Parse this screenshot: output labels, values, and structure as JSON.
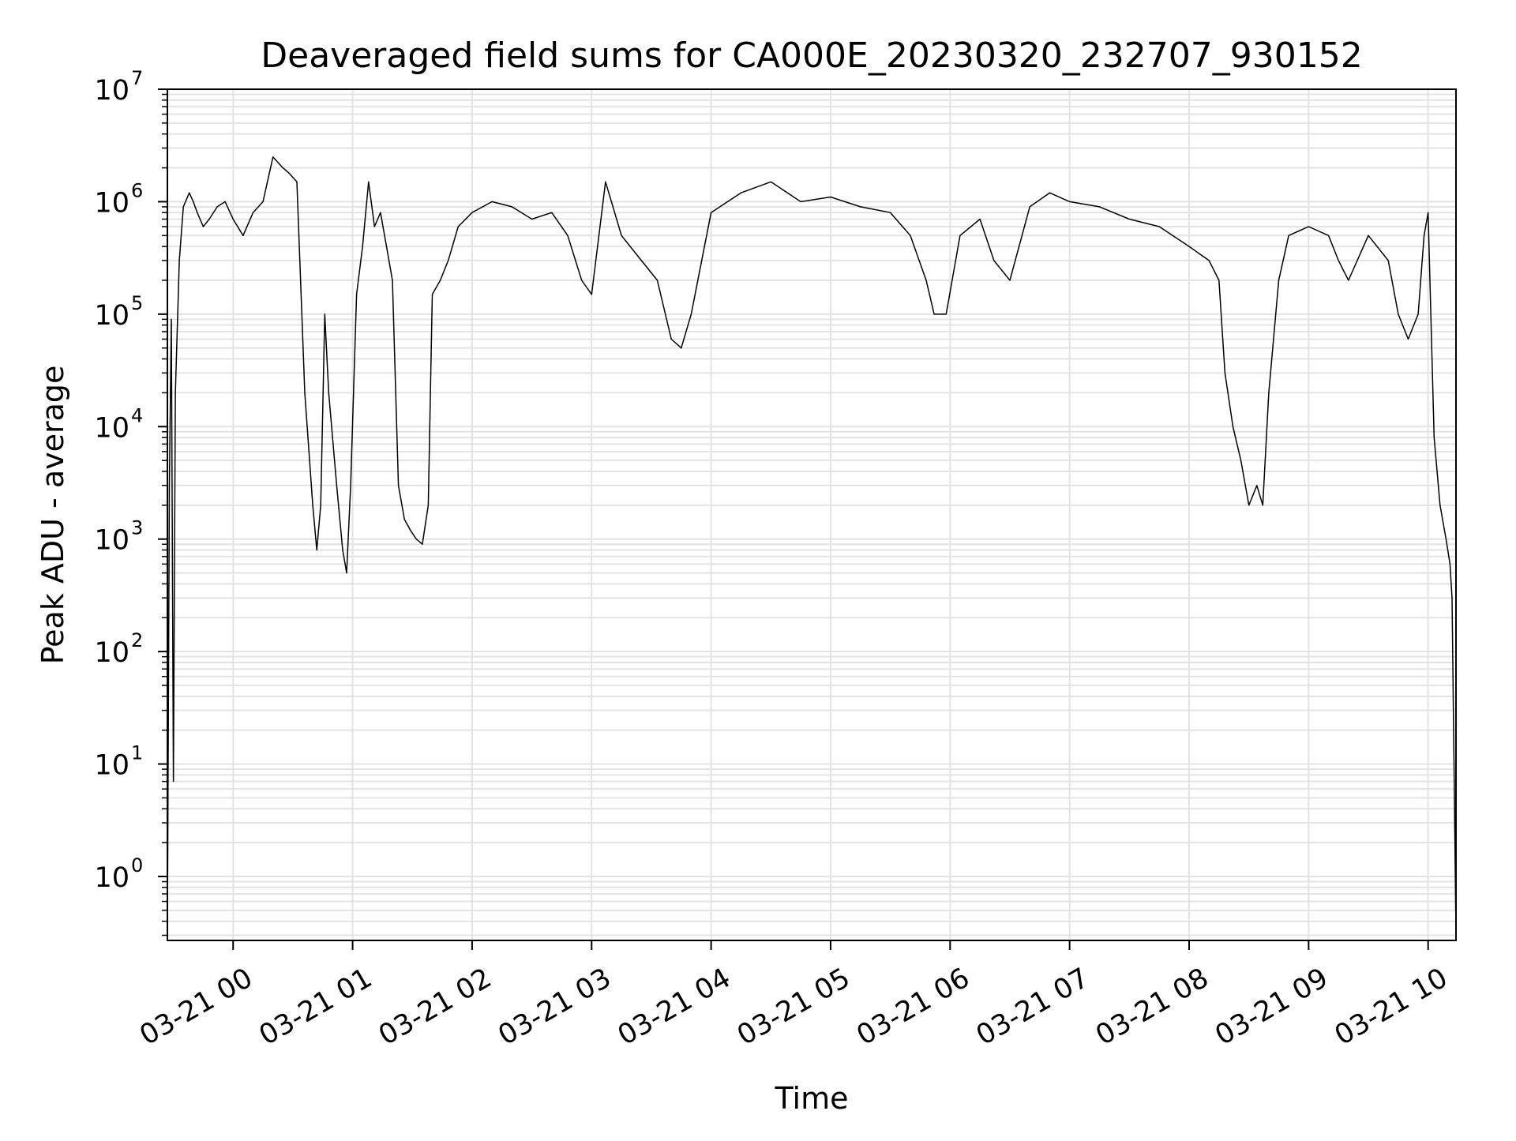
{
  "chart_data": {
    "type": "line",
    "title": "Deaveraged field sums for CA000E_20230320_232707_930152",
    "xlabel": "Time",
    "ylabel": "Peak ADU - average",
    "yscale": "log",
    "ylim": [
      0.27,
      10000000
    ],
    "xlim": [
      "2023-03-20 23:27:00",
      "2023-03-21 10:14:00"
    ],
    "grid": true,
    "line_color": "#000000",
    "grid_color": "#e3e3e3",
    "x_ticks": [
      {
        "value": "2023-03-21 00:00",
        "label": "03-21 00"
      },
      {
        "value": "2023-03-21 01:00",
        "label": "03-21 01"
      },
      {
        "value": "2023-03-21 02:00",
        "label": "03-21 02"
      },
      {
        "value": "2023-03-21 03:00",
        "label": "03-21 03"
      },
      {
        "value": "2023-03-21 04:00",
        "label": "03-21 04"
      },
      {
        "value": "2023-03-21 05:00",
        "label": "03-21 05"
      },
      {
        "value": "2023-03-21 06:00",
        "label": "03-21 06"
      },
      {
        "value": "2023-03-21 07:00",
        "label": "03-21 07"
      },
      {
        "value": "2023-03-21 08:00",
        "label": "03-21 08"
      },
      {
        "value": "2023-03-21 09:00",
        "label": "03-21 09"
      },
      {
        "value": "2023-03-21 10:00",
        "label": "03-21 10"
      }
    ],
    "y_ticks": [
      {
        "value": 1,
        "base": "10",
        "exp": "0"
      },
      {
        "value": 10,
        "base": "10",
        "exp": "1"
      },
      {
        "value": 100,
        "base": "10",
        "exp": "2"
      },
      {
        "value": 1000,
        "base": "10",
        "exp": "3"
      },
      {
        "value": 10000,
        "base": "10",
        "exp": "4"
      },
      {
        "value": 100000,
        "base": "10",
        "exp": "5"
      },
      {
        "value": 1000000,
        "base": "10",
        "exp": "6"
      },
      {
        "value": 10000000,
        "base": "10",
        "exp": "7"
      }
    ],
    "series": [
      {
        "x": [
          "2023-03-20 23:27",
          "2023-03-20 23:28",
          "2023-03-20 23:29",
          "2023-03-20 23:30",
          "2023-03-20 23:31",
          "2023-03-20 23:33",
          "2023-03-20 23:35",
          "2023-03-20 23:38",
          "2023-03-20 23:40",
          "2023-03-20 23:42",
          "2023-03-20 23:45",
          "2023-03-20 23:48",
          "2023-03-20 23:52",
          "2023-03-20 23:56",
          "2023-03-21 00:00",
          "2023-03-21 00:05",
          "2023-03-21 00:10",
          "2023-03-21 00:15",
          "2023-03-21 00:20",
          "2023-03-21 00:25",
          "2023-03-21 00:28",
          "2023-03-21 00:32",
          "2023-03-21 00:36",
          "2023-03-21 00:40",
          "2023-03-21 00:42",
          "2023-03-21 00:44",
          "2023-03-21 00:46",
          "2023-03-21 00:48",
          "2023-03-21 00:52",
          "2023-03-21 00:55",
          "2023-03-21 00:57",
          "2023-03-21 00:59",
          "2023-03-21 01:02",
          "2023-03-21 01:05",
          "2023-03-21 01:08",
          "2023-03-21 01:11",
          "2023-03-21 01:14",
          "2023-03-21 01:17",
          "2023-03-21 01:20",
          "2023-03-21 01:23",
          "2023-03-21 01:26",
          "2023-03-21 01:29",
          "2023-03-21 01:32",
          "2023-03-21 01:35",
          "2023-03-21 01:38",
          "2023-03-21 01:40",
          "2023-03-21 01:44",
          "2023-03-21 01:48",
          "2023-03-21 01:53",
          "2023-03-21 02:00",
          "2023-03-21 02:10",
          "2023-03-21 02:20",
          "2023-03-21 02:30",
          "2023-03-21 02:40",
          "2023-03-21 02:48",
          "2023-03-21 02:55",
          "2023-03-21 03:00",
          "2023-03-21 03:07",
          "2023-03-21 03:15",
          "2023-03-21 03:25",
          "2023-03-21 03:33",
          "2023-03-21 03:40",
          "2023-03-21 03:45",
          "2023-03-21 03:50",
          "2023-03-21 04:00",
          "2023-03-21 04:15",
          "2023-03-21 04:30",
          "2023-03-21 04:45",
          "2023-03-21 05:00",
          "2023-03-21 05:15",
          "2023-03-21 05:30",
          "2023-03-21 05:40",
          "2023-03-21 05:48",
          "2023-03-21 05:52",
          "2023-03-21 05:58",
          "2023-03-21 06:05",
          "2023-03-21 06:15",
          "2023-03-21 06:22",
          "2023-03-21 06:30",
          "2023-03-21 06:40",
          "2023-03-21 06:50",
          "2023-03-21 07:00",
          "2023-03-21 07:15",
          "2023-03-21 07:30",
          "2023-03-21 07:45",
          "2023-03-21 08:00",
          "2023-03-21 08:10",
          "2023-03-21 08:15",
          "2023-03-21 08:18",
          "2023-03-21 08:22",
          "2023-03-21 08:26",
          "2023-03-21 08:30",
          "2023-03-21 08:34",
          "2023-03-21 08:37",
          "2023-03-21 08:40",
          "2023-03-21 08:45",
          "2023-03-21 08:50",
          "2023-03-21 09:00",
          "2023-03-21 09:10",
          "2023-03-21 09:15",
          "2023-03-21 09:20",
          "2023-03-21 09:30",
          "2023-03-21 09:40",
          "2023-03-21 09:45",
          "2023-03-21 09:50",
          "2023-03-21 09:55",
          "2023-03-21 09:58",
          "2023-03-21 10:00",
          "2023-03-21 10:03",
          "2023-03-21 10:06",
          "2023-03-21 10:09",
          "2023-03-21 10:11",
          "2023-03-21 10:12",
          "2023-03-21 10:13",
          "2023-03-21 10:14"
        ],
        "y": [
          0.3,
          3000,
          90000,
          7,
          20000,
          300000,
          900000,
          1200000,
          1000000,
          800000,
          600000,
          700000,
          900000,
          1000000,
          700000,
          500000,
          800000,
          1000000,
          2500000,
          2000000,
          1800000,
          1500000,
          20000,
          2000,
          800,
          2000,
          100000,
          20000,
          3000,
          800,
          500,
          3000,
          150000,
          400000,
          1500000,
          600000,
          800000,
          400000,
          200000,
          3000,
          1500,
          1200,
          1000,
          900,
          2000,
          150000,
          200000,
          300000,
          600000,
          800000,
          1000000,
          900000,
          700000,
          800000,
          500000,
          200000,
          150000,
          1500000,
          500000,
          300000,
          200000,
          60000,
          50000,
          100000,
          800000,
          1200000,
          1500000,
          1000000,
          1100000,
          900000,
          800000,
          500000,
          200000,
          100000,
          100000,
          500000,
          700000,
          300000,
          200000,
          900000,
          1200000,
          1000000,
          900000,
          700000,
          600000,
          400000,
          300000,
          200000,
          30000,
          10000,
          5000,
          2000,
          3000,
          2000,
          20000,
          200000,
          500000,
          600000,
          500000,
          300000,
          200000,
          500000,
          300000,
          100000,
          60000,
          100000,
          500000,
          800000,
          8000,
          2000,
          1000,
          600,
          300,
          10,
          0.3
        ]
      }
    ]
  }
}
